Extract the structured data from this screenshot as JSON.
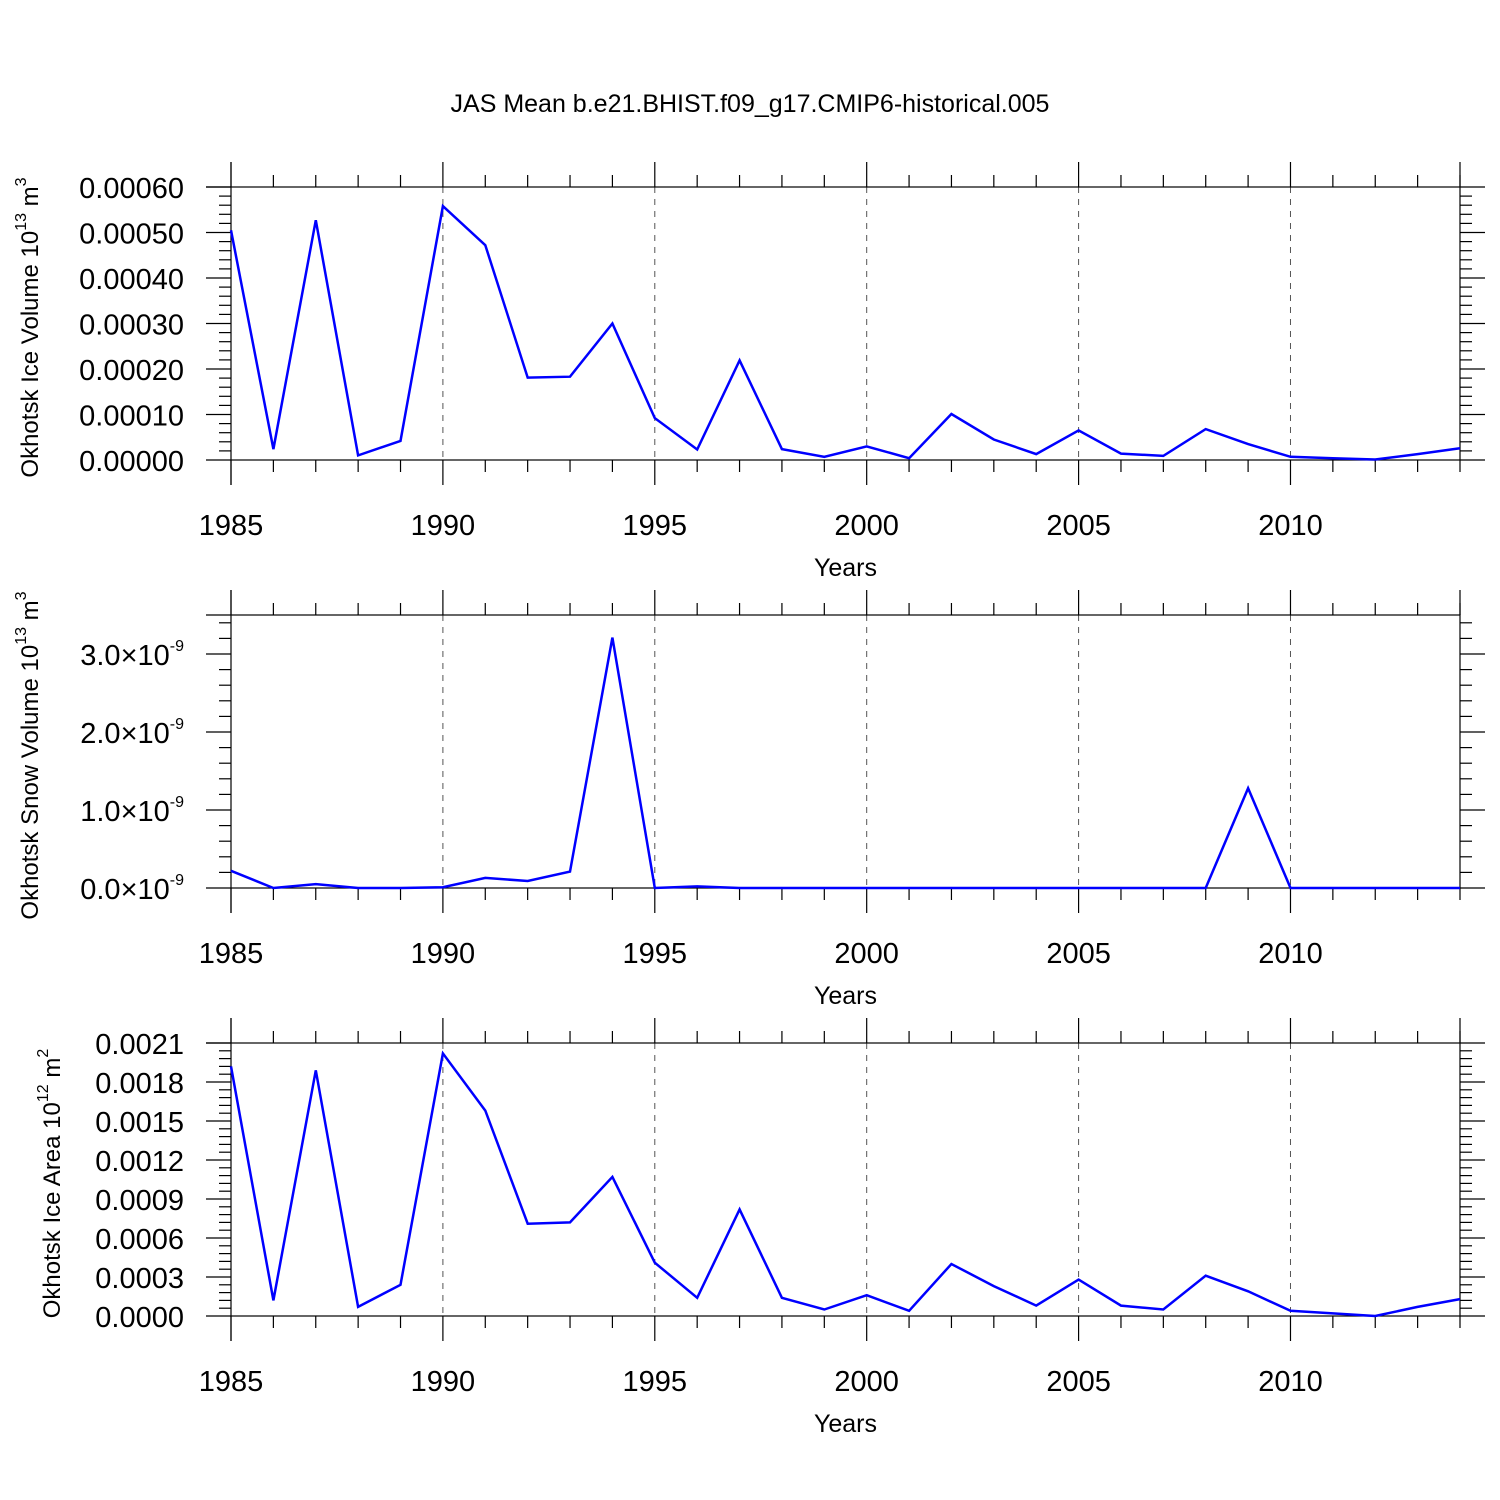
{
  "title": "JAS Mean b.e21.BHIST.f09_g17.CMIP6-historical.005",
  "colors": {
    "series": "#0000ff",
    "axis": "#000000",
    "grid": "#555555"
  },
  "chart_data": [
    {
      "type": "line",
      "name": "ice-volume",
      "ylabel_main": "Okhotsk Ice Volume 10",
      "ylabel_exp": "13",
      "ylabel_unit": " m",
      "ylabel_unit_exp": "3",
      "xlabel": "Years",
      "xlim": [
        1985,
        2014
      ],
      "ylim": [
        0,
        0.0006
      ],
      "xticks": [
        1985,
        1990,
        1995,
        2000,
        2005,
        2010
      ],
      "xtick_labels": [
        "1985",
        "1990",
        "1995",
        "2000",
        "2005",
        "2010"
      ],
      "yticks": [
        0,
        0.0001,
        0.0002,
        0.0003,
        0.0004,
        0.0005,
        0.0006
      ],
      "ytick_labels": [
        "0.00000",
        "0.00010",
        "0.00020",
        "0.00030",
        "0.00040",
        "0.00050",
        "0.00060"
      ],
      "x": [
        1985,
        1986,
        1987,
        1988,
        1989,
        1990,
        1991,
        1992,
        1993,
        1994,
        1995,
        1996,
        1997,
        1998,
        1999,
        2000,
        2001,
        2002,
        2003,
        2004,
        2005,
        2006,
        2007,
        2008,
        2009,
        2010,
        2011,
        2012,
        2013,
        2014
      ],
      "values": [
        0.000505,
        2.4e-05,
        0.000527,
        1e-05,
        4.2e-05,
        0.000558,
        0.000472,
        0.000181,
        0.000183,
        0.0003,
        9.2e-05,
        2.3e-05,
        0.000219,
        2.4e-05,
        7e-06,
        3e-05,
        4e-06,
        0.000101,
        4.5e-05,
        1.3e-05,
        6.5e-05,
        1.4e-05,
        9e-06,
        6.8e-05,
        3.5e-05,
        7e-06,
        4e-06,
        1e-06,
        1.3e-05,
        2.6e-05
      ]
    },
    {
      "type": "line",
      "name": "snow-volume",
      "ylabel_main": "Okhotsk Snow Volume 10",
      "ylabel_exp": "13",
      "ylabel_unit": " m",
      "ylabel_unit_exp": "3",
      "xlabel": "Years",
      "xlim": [
        1985,
        2014
      ],
      "ylim": [
        0,
        3.5e-09
      ],
      "xticks": [
        1985,
        1990,
        1995,
        2000,
        2005,
        2010
      ],
      "xtick_labels": [
        "1985",
        "1990",
        "1995",
        "2000",
        "2005",
        "2010"
      ],
      "yticks": [
        0,
        1e-09,
        2e-09,
        3e-09
      ],
      "ytick_mantissa": [
        "0.0",
        "1.0",
        "2.0",
        "3.0"
      ],
      "ytick_times": "×",
      "ytick_base": "10",
      "ytick_exp": "-9",
      "x": [
        1985,
        1986,
        1987,
        1988,
        1989,
        1990,
        1991,
        1992,
        1993,
        1994,
        1995,
        1996,
        1997,
        1998,
        1999,
        2000,
        2001,
        2002,
        2003,
        2004,
        2005,
        2006,
        2007,
        2008,
        2009,
        2010,
        2011,
        2012,
        2013,
        2014
      ],
      "values": [
        2.2e-10,
        0.0,
        5e-11,
        0.0,
        0.0,
        1e-11,
        1.3e-10,
        9e-11,
        2.1e-10,
        3.21e-09,
        0.0,
        2e-11,
        0.0,
        0.0,
        0.0,
        0.0,
        0.0,
        0.0,
        0.0,
        0.0,
        0.0,
        0.0,
        0.0,
        0.0,
        1.28e-09,
        0.0,
        0.0,
        0.0,
        0.0,
        0.0
      ]
    },
    {
      "type": "line",
      "name": "ice-area",
      "ylabel_main": "Okhotsk Ice Area 10",
      "ylabel_exp": "12",
      "ylabel_unit": " m",
      "ylabel_unit_exp": "2",
      "xlabel": "Years",
      "xlim": [
        1985,
        2014
      ],
      "ylim": [
        0,
        0.0021
      ],
      "xticks": [
        1985,
        1990,
        1995,
        2000,
        2005,
        2010
      ],
      "xtick_labels": [
        "1985",
        "1990",
        "1995",
        "2000",
        "2005",
        "2010"
      ],
      "yticks": [
        0,
        0.0003,
        0.0006,
        0.0009,
        0.0012,
        0.0015,
        0.0018,
        0.0021
      ],
      "ytick_labels": [
        "0.0000",
        "0.0003",
        "0.0006",
        "0.0009",
        "0.0012",
        "0.0015",
        "0.0018",
        "0.0021"
      ],
      "x": [
        1985,
        1986,
        1987,
        1988,
        1989,
        1990,
        1991,
        1992,
        1993,
        1994,
        1995,
        1996,
        1997,
        1998,
        1999,
        2000,
        2001,
        2002,
        2003,
        2004,
        2005,
        2006,
        2007,
        2008,
        2009,
        2010,
        2011,
        2012,
        2013,
        2014
      ],
      "values": [
        0.00192,
        0.00012,
        0.00189,
        7e-05,
        0.00024,
        0.00202,
        0.00158,
        0.00071,
        0.00072,
        0.00107,
        0.00041,
        0.00014,
        0.00082,
        0.00014,
        5e-05,
        0.00016,
        4e-05,
        0.0004,
        0.00023,
        8e-05,
        0.00028,
        8e-05,
        5e-05,
        0.00031,
        0.00019,
        4e-05,
        2e-05,
        0.0,
        7e-05,
        0.00013
      ]
    }
  ]
}
